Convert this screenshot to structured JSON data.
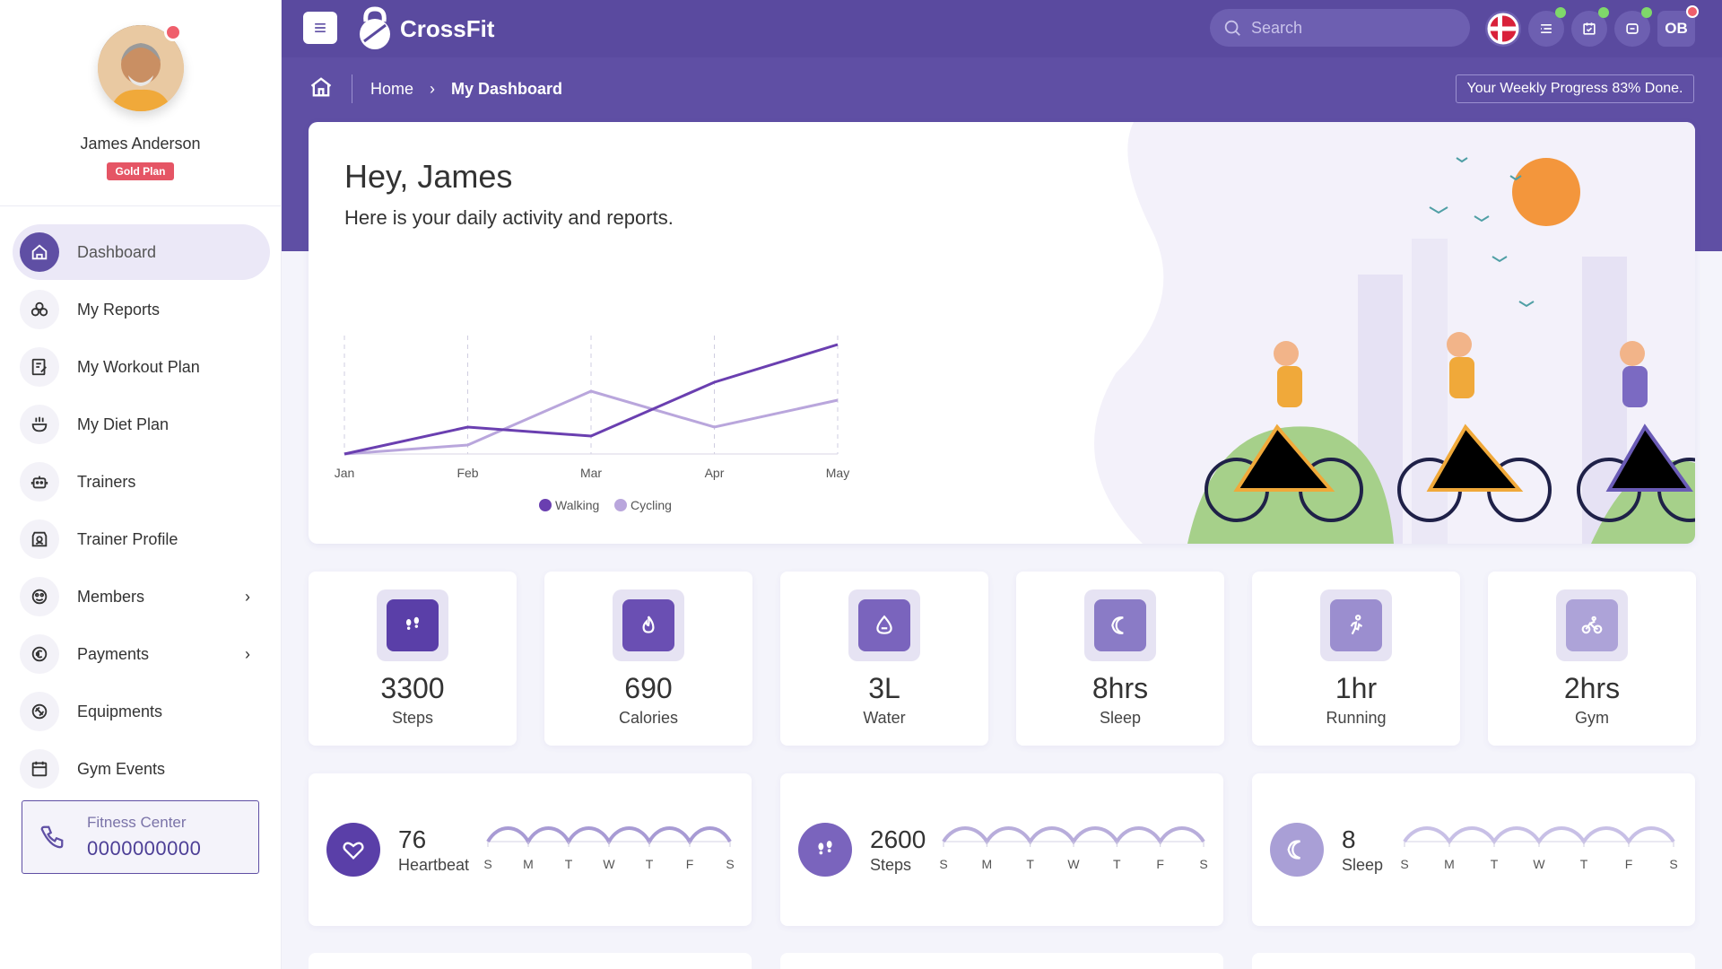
{
  "profile": {
    "name": "James Anderson",
    "plan": "Gold Plan"
  },
  "nav": [
    {
      "label": "Dashboard",
      "icon": "home-icon",
      "active": true
    },
    {
      "label": "My Reports",
      "icon": "reports-icon"
    },
    {
      "label": "My Workout Plan",
      "icon": "workout-plan-icon"
    },
    {
      "label": "My Diet Plan",
      "icon": "diet-plan-icon"
    },
    {
      "label": "Trainers",
      "icon": "trainers-icon"
    },
    {
      "label": "Trainer Profile",
      "icon": "trainer-profile-icon"
    },
    {
      "label": "Members",
      "icon": "members-icon",
      "chevron": true
    },
    {
      "label": "Payments",
      "icon": "euro-icon",
      "chevron": true
    },
    {
      "label": "Equipments",
      "icon": "equipments-icon"
    },
    {
      "label": "Gym Events",
      "icon": "calendar-icon"
    }
  ],
  "contact": {
    "title": "Fitness Center",
    "phone": "0000000000"
  },
  "header": {
    "brand": "CrossFit",
    "search_placeholder": "Search",
    "user_initials": "OB"
  },
  "breadcrumb": {
    "home": "Home",
    "current": "My Dashboard"
  },
  "progress_text": "Your Weekly Progress 83% Done.",
  "hero": {
    "greeting": "Hey, James",
    "subtitle": "Here is your daily activity and reports."
  },
  "chart_data": {
    "type": "line",
    "x": [
      "Jan",
      "Feb",
      "Mar",
      "Apr",
      "May"
    ],
    "series": [
      {
        "name": "Walking",
        "values": [
          0,
          30,
          20,
          80,
          122
        ],
        "color": "#6a3fb0"
      },
      {
        "name": "Cycling",
        "values": [
          0,
          10,
          70,
          30,
          60
        ],
        "color": "#b9a6dc"
      }
    ],
    "ylim": [
      0,
      130
    ],
    "grid": "vertical-dashed",
    "legend": "bottom"
  },
  "stats": [
    {
      "value": "3300",
      "label": "Steps",
      "icon": "footprints-icon",
      "color": "#5a3fa8"
    },
    {
      "value": "690",
      "label": "Calories",
      "icon": "flame-icon",
      "color": "#6a4fb3"
    },
    {
      "value": "3L",
      "label": "Water",
      "icon": "water-drop-icon",
      "color": "#7a64bd"
    },
    {
      "value": "8hrs",
      "label": "Sleep",
      "icon": "moon-icon",
      "color": "#8a7bc6"
    },
    {
      "value": "1hr",
      "label": "Running",
      "icon": "running-icon",
      "color": "#9b8ecf"
    },
    {
      "value": "2hrs",
      "label": "Gym",
      "icon": "cycling-icon",
      "color": "#ada3d8"
    }
  ],
  "mini_cards": [
    {
      "value": "76",
      "label": "Heartbeat",
      "icon": "heart-icon",
      "color": "#5a3fa8",
      "wave_color": "#a89bd4",
      "days": [
        "S",
        "M",
        "T",
        "W",
        "T",
        "F",
        "S"
      ]
    },
    {
      "value": "2600",
      "label": "Steps",
      "icon": "footprints-icon",
      "color": "#7a64bd",
      "wave_color": "#b8addb",
      "days": [
        "S",
        "M",
        "T",
        "W",
        "T",
        "F",
        "S"
      ]
    },
    {
      "value": "8",
      "label": "Sleep",
      "icon": "moon-icon",
      "color": "#a99fd6",
      "wave_color": "#c8c0e6",
      "days": [
        "S",
        "M",
        "T",
        "W",
        "T",
        "F",
        "S"
      ]
    }
  ]
}
